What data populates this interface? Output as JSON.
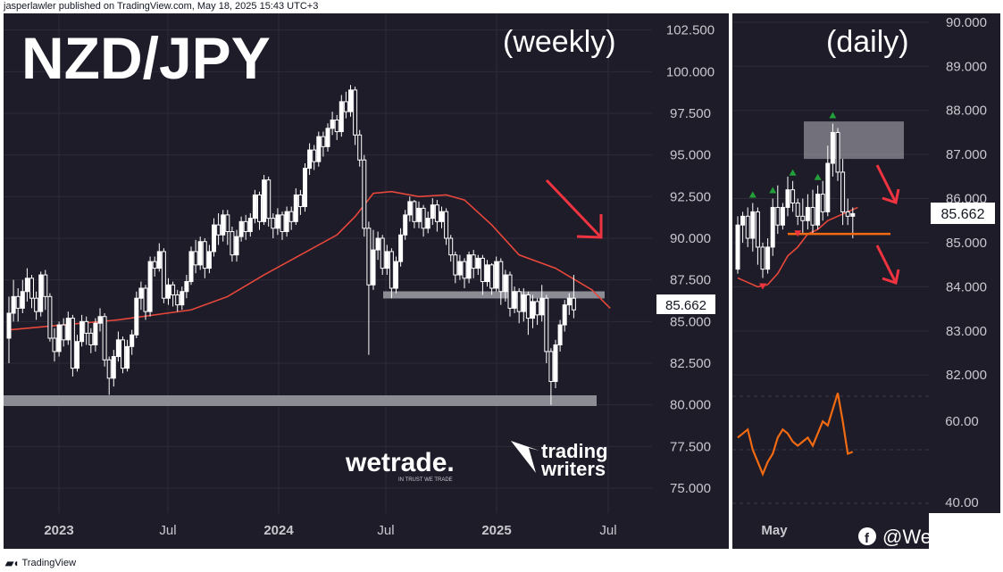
{
  "header": {
    "text": "jasperlawler published on TradingView.com, May 18, 2025 15:43 UTC+3"
  },
  "footer": {
    "brand": "TradingView"
  },
  "colors": {
    "panel_bg": "#1e1c28",
    "grid": "#2c2b37",
    "candle": "#ffffff",
    "ma": "#e8473b",
    "arrow": "#ef3340",
    "support_band": "#8c8c94",
    "zone_fill": "#b8b8c0",
    "daily_support": "#f26a12",
    "rsi_line": "#f26a12",
    "price_label_bg": "#ffffff",
    "axis_text": "#c8c8cf"
  },
  "chart_data": [
    {
      "type": "candlestick",
      "title": "NZD/JPY",
      "subtitle": "(weekly)",
      "current_price": "85.662",
      "x_tick_labels": [
        "2023",
        "Jul",
        "2024",
        "Jul",
        "2025",
        "Jul"
      ],
      "y_tick_labels": [
        "102.500",
        "100.000",
        "97.500",
        "95.000",
        "92.500",
        "90.000",
        "87.500",
        "85.000",
        "82.500",
        "80.000",
        "77.500",
        "75.000"
      ],
      "ylim": [
        73.5,
        103.5
      ],
      "support_levels": [
        86.6,
        80.25
      ],
      "moving_average": [
        [
          0,
          84.5
        ],
        [
          8,
          84.7
        ],
        [
          16,
          84.9
        ],
        [
          24,
          85.1
        ],
        [
          32,
          85.4
        ],
        [
          40,
          85.7
        ],
        [
          48,
          86.5
        ],
        [
          56,
          87.8
        ],
        [
          64,
          89.0
        ],
        [
          72,
          90.2
        ],
        [
          76,
          91.3
        ],
        [
          80,
          92.7
        ],
        [
          84,
          92.8
        ],
        [
          90,
          92.5
        ],
        [
          96,
          92.6
        ],
        [
          100,
          92.3
        ],
        [
          106,
          90.8
        ],
        [
          112,
          89.0
        ],
        [
          120,
          88.2
        ],
        [
          128,
          86.9
        ],
        [
          132,
          85.8
        ]
      ],
      "candles": [
        [
          0,
          84.0,
          85.5,
          82.5,
          86.5
        ],
        [
          1,
          85.5,
          86.5,
          85.0,
          87.5
        ],
        [
          2,
          86.5,
          85.8,
          85.0,
          87.0
        ],
        [
          3,
          85.8,
          86.8,
          85.5,
          87.5
        ],
        [
          4,
          86.8,
          87.6,
          86.2,
          88.2
        ],
        [
          5,
          87.6,
          86.4,
          85.8,
          87.8
        ],
        [
          6,
          86.4,
          85.6,
          85.1,
          86.8
        ],
        [
          7,
          85.6,
          87.8,
          85.3,
          88.0
        ],
        [
          8,
          87.8,
          86.5,
          85.7,
          88.1
        ],
        [
          9,
          86.5,
          84.0,
          83.8,
          86.7
        ],
        [
          10,
          84.0,
          83.2,
          82.6,
          84.6
        ],
        [
          11,
          83.2,
          84.8,
          82.9,
          85.0
        ],
        [
          12,
          84.8,
          83.9,
          83.5,
          85.2
        ],
        [
          13,
          83.9,
          85.2,
          83.6,
          85.6
        ],
        [
          14,
          85.2,
          82.2,
          81.7,
          85.4
        ],
        [
          15,
          82.2,
          83.8,
          82.0,
          84.2
        ],
        [
          16,
          83.8,
          85.0,
          83.5,
          85.4
        ],
        [
          17,
          85.0,
          84.3,
          83.6,
          85.3
        ],
        [
          18,
          84.3,
          83.6,
          83.1,
          84.6
        ],
        [
          19,
          83.6,
          84.9,
          83.2,
          85.2
        ],
        [
          20,
          84.9,
          85.3,
          84.4,
          85.8
        ],
        [
          21,
          85.3,
          82.7,
          82.3,
          85.5
        ],
        [
          22,
          82.7,
          81.6,
          80.6,
          82.9
        ],
        [
          23,
          81.6,
          82.9,
          81.1,
          83.3
        ],
        [
          24,
          82.9,
          83.9,
          82.6,
          84.4
        ],
        [
          25,
          83.9,
          82.2,
          81.9,
          84.1
        ],
        [
          26,
          82.2,
          83.5,
          82.0,
          83.9
        ],
        [
          27,
          83.5,
          84.2,
          83.0,
          84.5
        ],
        [
          28,
          84.2,
          86.4,
          84.0,
          86.8
        ],
        [
          29,
          86.4,
          87.0,
          85.7,
          87.4
        ],
        [
          30,
          87.0,
          85.6,
          85.1,
          87.2
        ],
        [
          31,
          85.6,
          88.6,
          85.3,
          88.9
        ],
        [
          32,
          88.6,
          88.2,
          87.7,
          88.9
        ],
        [
          33,
          88.2,
          89.2,
          88.0,
          89.7
        ],
        [
          34,
          89.2,
          86.4,
          86.1,
          89.4
        ],
        [
          35,
          86.4,
          87.2,
          86.0,
          87.6
        ],
        [
          36,
          87.2,
          86.6,
          85.9,
          87.4
        ],
        [
          37,
          86.6,
          86.0,
          85.6,
          86.9
        ],
        [
          38,
          86.0,
          86.8,
          85.7,
          87.1
        ],
        [
          39,
          86.8,
          87.4,
          86.4,
          87.8
        ],
        [
          40,
          87.4,
          89.2,
          87.2,
          89.5
        ],
        [
          41,
          89.2,
          88.4,
          87.9,
          89.9
        ],
        [
          42,
          88.4,
          89.8,
          88.1,
          90.1
        ],
        [
          43,
          89.8,
          88.2,
          87.6,
          90.0
        ],
        [
          44,
          88.2,
          89.2,
          87.9,
          89.6
        ],
        [
          45,
          89.2,
          90.8,
          88.9,
          91.2
        ],
        [
          46,
          90.8,
          90.2,
          89.6,
          91.5
        ],
        [
          47,
          90.2,
          91.4,
          89.8,
          91.7
        ],
        [
          48,
          91.4,
          90.4,
          89.6,
          91.7
        ],
        [
          49,
          90.4,
          89.0,
          88.6,
          90.7
        ],
        [
          50,
          89.0,
          90.1,
          88.6,
          90.5
        ],
        [
          51,
          90.1,
          91.0,
          89.8,
          91.3
        ],
        [
          52,
          91.0,
          90.4,
          89.9,
          91.4
        ],
        [
          53,
          90.4,
          91.2,
          90.1,
          91.5
        ],
        [
          54,
          91.2,
          92.6,
          90.9,
          92.9
        ],
        [
          55,
          92.6,
          91.0,
          90.5,
          92.8
        ],
        [
          56,
          91.0,
          93.5,
          90.8,
          93.8
        ],
        [
          57,
          93.5,
          91.2,
          90.7,
          93.7
        ],
        [
          58,
          91.2,
          90.6,
          90.0,
          91.5
        ],
        [
          59,
          90.6,
          91.4,
          90.2,
          91.8
        ],
        [
          60,
          91.4,
          90.4,
          89.9,
          91.6
        ],
        [
          61,
          90.4,
          91.6,
          90.1,
          91.9
        ],
        [
          62,
          91.6,
          91.0,
          90.5,
          91.9
        ],
        [
          63,
          91.0,
          92.6,
          90.8,
          93.0
        ],
        [
          64,
          92.6,
          91.9,
          91.4,
          92.9
        ],
        [
          65,
          91.9,
          94.2,
          91.6,
          94.5
        ],
        [
          66,
          94.2,
          95.3,
          93.8,
          95.7
        ],
        [
          67,
          95.3,
          94.6,
          94.1,
          95.6
        ],
        [
          68,
          94.6,
          96.1,
          94.3,
          96.4
        ],
        [
          69,
          96.1,
          95.5,
          94.9,
          96.4
        ],
        [
          70,
          95.5,
          96.6,
          95.2,
          96.9
        ],
        [
          71,
          96.6,
          97.1,
          96.2,
          97.6
        ],
        [
          72,
          97.1,
          96.4,
          95.9,
          97.4
        ],
        [
          73,
          96.4,
          98.2,
          96.1,
          98.6
        ],
        [
          74,
          98.2,
          97.6,
          97.2,
          98.8
        ],
        [
          75,
          97.6,
          98.9,
          97.3,
          99.2
        ],
        [
          76,
          98.9,
          96.2,
          95.6,
          99.1
        ],
        [
          77,
          96.2,
          94.7,
          94.3,
          96.5
        ],
        [
          78,
          94.7,
          90.6,
          90.1,
          95.0
        ],
        [
          79,
          90.6,
          87.2,
          83.0,
          91.0
        ],
        [
          80,
          87.2,
          89.3,
          86.9,
          90.5
        ],
        [
          81,
          89.3,
          90.0,
          88.7,
          90.4
        ],
        [
          82,
          90.0,
          88.2,
          87.8,
          90.2
        ],
        [
          83,
          88.2,
          89.2,
          87.8,
          89.6
        ],
        [
          84,
          89.2,
          87.0,
          86.4,
          89.4
        ],
        [
          85,
          87.0,
          88.6,
          86.7,
          88.9
        ],
        [
          86,
          88.6,
          90.2,
          88.3,
          90.6
        ],
        [
          87,
          90.2,
          91.4,
          89.9,
          91.7
        ],
        [
          88,
          91.4,
          92.2,
          91.0,
          92.5
        ],
        [
          89,
          92.2,
          91.0,
          90.6,
          92.3
        ],
        [
          90,
          91.0,
          91.8,
          90.6,
          92.2
        ],
        [
          91,
          91.8,
          90.6,
          90.1,
          92.0
        ],
        [
          92,
          90.6,
          91.2,
          90.3,
          91.6
        ],
        [
          93,
          91.2,
          92.0,
          90.8,
          92.4
        ],
        [
          94,
          92.0,
          91.0,
          90.4,
          92.3
        ],
        [
          95,
          91.0,
          91.6,
          90.6,
          91.9
        ],
        [
          96,
          91.6,
          90.0,
          89.6,
          91.8
        ],
        [
          97,
          90.0,
          89.0,
          88.6,
          90.2
        ],
        [
          98,
          89.0,
          87.8,
          87.3,
          89.2
        ],
        [
          99,
          87.8,
          88.6,
          87.5,
          89.0
        ],
        [
          100,
          88.6,
          87.6,
          87.0,
          88.8
        ],
        [
          101,
          87.6,
          89.0,
          87.3,
          89.2
        ],
        [
          102,
          89.0,
          88.2,
          87.6,
          89.3
        ],
        [
          103,
          88.2,
          88.8,
          87.8,
          89.0
        ],
        [
          104,
          88.8,
          87.4,
          86.6,
          89.0
        ],
        [
          105,
          87.4,
          88.4,
          87.1,
          88.7
        ],
        [
          106,
          88.4,
          87.0,
          86.6,
          88.5
        ],
        [
          107,
          87.0,
          88.6,
          86.8,
          88.9
        ],
        [
          108,
          88.6,
          86.8,
          86.0,
          88.8
        ],
        [
          109,
          86.8,
          87.8,
          86.2,
          88.1
        ],
        [
          110,
          87.8,
          85.8,
          85.3,
          88.0
        ],
        [
          111,
          85.8,
          86.8,
          85.5,
          87.1
        ],
        [
          112,
          86.8,
          85.6,
          84.9,
          87.0
        ],
        [
          113,
          85.6,
          86.6,
          85.0,
          87.0
        ],
        [
          114,
          86.6,
          85.2,
          84.2,
          86.8
        ],
        [
          115,
          85.2,
          86.2,
          84.6,
          86.6
        ],
        [
          116,
          86.2,
          85.4,
          84.8,
          86.4
        ],
        [
          117,
          85.4,
          86.4,
          85.0,
          87.2
        ],
        [
          118,
          86.4,
          83.2,
          82.5,
          86.6
        ],
        [
          119,
          83.2,
          81.4,
          80.0,
          83.4
        ],
        [
          120,
          81.4,
          83.6,
          81.0,
          83.9
        ],
        [
          121,
          83.6,
          84.8,
          83.2,
          85.1
        ],
        [
          122,
          84.8,
          86.0,
          84.4,
          86.3
        ],
        [
          123,
          86.0,
          86.4,
          85.4,
          86.7
        ],
        [
          124,
          86.4,
          85.7,
          85.2,
          87.8
        ]
      ]
    },
    {
      "type": "candlestick",
      "subtitle": "(daily)",
      "current_price": "85.662",
      "x_tick_labels": [
        "May"
      ],
      "y_tick_labels": [
        "90.000",
        "89.000",
        "88.000",
        "87.000",
        "86.000",
        "85.000",
        "84.000",
        "83.000",
        "82.000"
      ],
      "ylim": [
        81.6,
        90.2
      ],
      "resistance_zone": [
        86.9,
        87.75
      ],
      "support_level": 85.2,
      "moving_average": [
        [
          0,
          84.2
        ],
        [
          2,
          84.1
        ],
        [
          4,
          84.0
        ],
        [
          6,
          84.05
        ],
        [
          8,
          84.3
        ],
        [
          10,
          84.7
        ],
        [
          12,
          84.9
        ],
        [
          14,
          85.2
        ],
        [
          16,
          85.3
        ],
        [
          18,
          85.5
        ],
        [
          20,
          85.6
        ],
        [
          22,
          85.7
        ],
        [
          24,
          85.8
        ]
      ],
      "candles": [
        [
          0,
          84.4,
          85.4,
          84.3,
          85.6
        ],
        [
          1,
          85.4,
          85.6,
          85.0,
          85.7
        ],
        [
          2,
          85.6,
          85.1,
          84.9,
          85.8
        ],
        [
          3,
          85.1,
          85.7,
          84.8,
          85.9
        ],
        [
          4,
          85.7,
          84.9,
          84.5,
          85.8
        ],
        [
          5,
          84.9,
          84.4,
          84.2,
          85.0
        ],
        [
          6,
          84.4,
          84.9,
          84.3,
          85.1
        ],
        [
          7,
          84.9,
          85.8,
          84.7,
          86.0
        ],
        [
          8,
          85.8,
          85.4,
          85.2,
          86.3
        ],
        [
          9,
          85.4,
          85.8,
          85.3,
          85.9
        ],
        [
          10,
          85.8,
          86.2,
          85.6,
          86.5
        ],
        [
          11,
          86.2,
          85.9,
          85.7,
          86.4
        ],
        [
          12,
          85.9,
          85.6,
          85.4,
          86.0
        ],
        [
          13,
          85.6,
          85.5,
          85.2,
          86.0
        ],
        [
          14,
          85.5,
          85.8,
          85.3,
          86.1
        ],
        [
          15,
          85.8,
          85.4,
          85.2,
          86.2
        ],
        [
          16,
          85.4,
          86.1,
          85.3,
          86.3
        ],
        [
          17,
          86.1,
          85.7,
          85.5,
          86.4
        ],
        [
          18,
          85.7,
          86.8,
          85.6,
          87.2
        ],
        [
          19,
          86.8,
          87.5,
          86.5,
          87.7
        ],
        [
          20,
          87.5,
          86.6,
          86.4,
          87.6
        ],
        [
          21,
          86.6,
          85.7,
          85.4,
          86.9
        ],
        [
          22,
          85.7,
          85.6,
          85.4,
          86.0
        ],
        [
          23,
          85.6,
          85.66,
          85.1,
          85.8
        ]
      ],
      "up_markers": [
        3,
        7,
        11,
        16,
        19
      ],
      "down_markers": [
        5,
        12
      ],
      "rsi": {
        "values": [
          56,
          57,
          58,
          53,
          50,
          47,
          50,
          52,
          56,
          58,
          57,
          55,
          54,
          55,
          56,
          54,
          57,
          60,
          59,
          63,
          67,
          60,
          52,
          52.5
        ],
        "ylim": [
          38,
          66
        ],
        "tick_labels": [
          "60.00",
          "40.00"
        ]
      }
    }
  ]
}
